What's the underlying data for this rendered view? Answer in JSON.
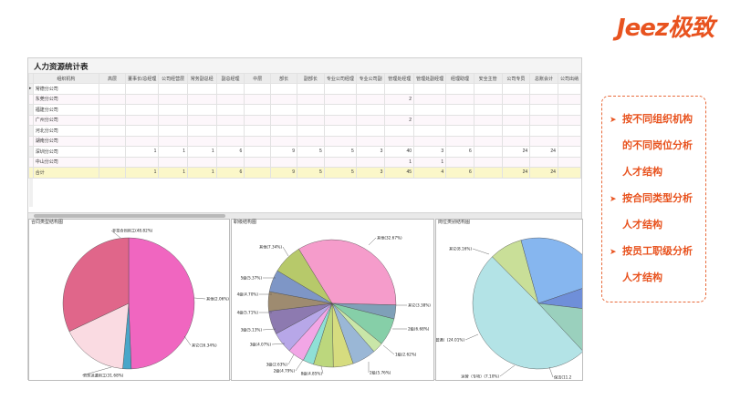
{
  "brand": "Jeez极致",
  "report": {
    "title": "人力资源统计表",
    "columns": [
      "组织机构",
      "高层",
      "董事长/总经理",
      "公司经营层",
      "常务副总经",
      "副总经理",
      "中层",
      "部长",
      "副部长",
      "专业公司经理",
      "专业公司副",
      "管理处经理",
      "管理处副经理",
      "经理助理",
      "安全主管",
      "公司专员",
      "总账会计",
      "公司出纳"
    ],
    "rows": [
      {
        "name": "常德分公司",
        "values": [
          "",
          "",
          "",
          "",
          "",
          "",
          "",
          "",
          "",
          "",
          "",
          "",
          "",
          "",
          "",
          "",
          ""
        ]
      },
      {
        "name": "东莞分公司",
        "values": [
          "",
          "",
          "",
          "",
          "",
          "",
          "",
          "",
          "",
          "",
          "2",
          "",
          "",
          "",
          "",
          "",
          ""
        ]
      },
      {
        "name": "福建分公司",
        "values": [
          "",
          "",
          "",
          "",
          "",
          "",
          "",
          "",
          "",
          "",
          "",
          "",
          "",
          "",
          "",
          "",
          ""
        ]
      },
      {
        "name": "广州分公司",
        "values": [
          "",
          "",
          "",
          "",
          "",
          "",
          "",
          "",
          "",
          "",
          "2",
          "",
          "",
          "",
          "",
          "",
          ""
        ]
      },
      {
        "name": "河北分公司",
        "values": [
          "",
          "",
          "",
          "",
          "",
          "",
          "",
          "",
          "",
          "",
          "",
          "",
          "",
          "",
          "",
          "",
          ""
        ]
      },
      {
        "name": "湖南分公司",
        "values": [
          "",
          "",
          "",
          "",
          "",
          "",
          "",
          "",
          "",
          "",
          "",
          "",
          "",
          "",
          "",
          "",
          ""
        ]
      },
      {
        "name": "深圳分公司",
        "values": [
          "",
          "1",
          "1",
          "1",
          "6",
          "",
          "9",
          "5",
          "5",
          "3",
          "40",
          "3",
          "6",
          "",
          "24",
          "24",
          ""
        ]
      },
      {
        "name": "中山分公司",
        "values": [
          "",
          "",
          "",
          "",
          "",
          "",
          "",
          "",
          "",
          "",
          "1",
          "1",
          "",
          "",
          "",
          "",
          ""
        ]
      },
      {
        "name": "合计",
        "values": [
          "",
          "1",
          "1",
          "1",
          "6",
          "",
          "9",
          "5",
          "5",
          "3",
          "45",
          "4",
          "6",
          "",
          "24",
          "24",
          ""
        ]
      }
    ]
  },
  "panels": [
    {
      "title": "合同类型结构图",
      "labels": [
        "非签合同用工(48.82%)",
        "其他(2.06%)",
        "其它(16.34%)",
        "劳务派遣用工(31.68%)"
      ]
    },
    {
      "title": "职级结构图",
      "labels": [
        "其他(32.67%)",
        "其它(3.38%)",
        "2级(6.68%)",
        "1级(2.62%)",
        "2级(5.76%)",
        "8级(4.85%)",
        "2级(4.79%)",
        "3级(2.63%)",
        "3级(4.07%)",
        "3级(5.13%)",
        "4级(5.71%)",
        "4级(4.70%)",
        "5级(5.37%)",
        "其他(7.34%)"
      ]
    },
    {
      "title": "岗位类别结构图",
      "labels": [
        "其它(8.16%)",
        "运营（普通）(24.01%)",
        "运营（专项）(7.10%)",
        "保洁(11.2",
        "其他"
      ]
    }
  ],
  "chart_data": [
    {
      "type": "pie",
      "title": "合同类型结构图",
      "categories": [
        "非签合同用工",
        "其他",
        "其它",
        "劳务派遣用工"
      ],
      "values": [
        48.82,
        2.06,
        16.34,
        31.68
      ],
      "colors": [
        "#f066c0",
        "#49a6c9",
        "#fadbe2",
        "#e0668a"
      ]
    },
    {
      "type": "pie",
      "title": "职级结构图",
      "categories": [
        "其他",
        "其它",
        "2级",
        "1级",
        "2级",
        "8级",
        "2级",
        "3级",
        "3级",
        "3级",
        "4级",
        "4级",
        "5级",
        "其他"
      ],
      "values": [
        32.67,
        3.38,
        6.68,
        2.62,
        5.76,
        4.85,
        4.79,
        2.63,
        4.07,
        5.13,
        5.71,
        4.7,
        5.37,
        7.34
      ],
      "colors": [
        "#f59ccb",
        "#7fa0b8",
        "#86cfa8",
        "#c9e6a8",
        "#9ab7d6",
        "#d6dc7f",
        "#bcd77d",
        "#8fe0d6",
        "#f2a6e6",
        "#b7a7e8",
        "#8d7ab0",
        "#9e8b70",
        "#7e96c6",
        "#b7c96a"
      ]
    },
    {
      "type": "pie",
      "title": "岗位类别结构图",
      "categories": [
        "其它",
        "运营（普通）",
        "运营（专项）",
        "保洁",
        "其他"
      ],
      "values": [
        8.16,
        24.01,
        7.1,
        11.2,
        49.53
      ],
      "colors": [
        "#c9df98",
        "#86b6ef",
        "#6f8fd9",
        "#9ad0bd",
        "#b3e3e6"
      ]
    }
  ],
  "info": {
    "items": [
      {
        "lines": [
          "按不同组织机构",
          "的不同岗位分析",
          "人才结构"
        ]
      },
      {
        "lines": [
          "按合同类型分析",
          "人才结构"
        ]
      },
      {
        "lines": [
          "按员工职级分析",
          "人才结构"
        ]
      }
    ],
    "color": "#e8531f"
  }
}
